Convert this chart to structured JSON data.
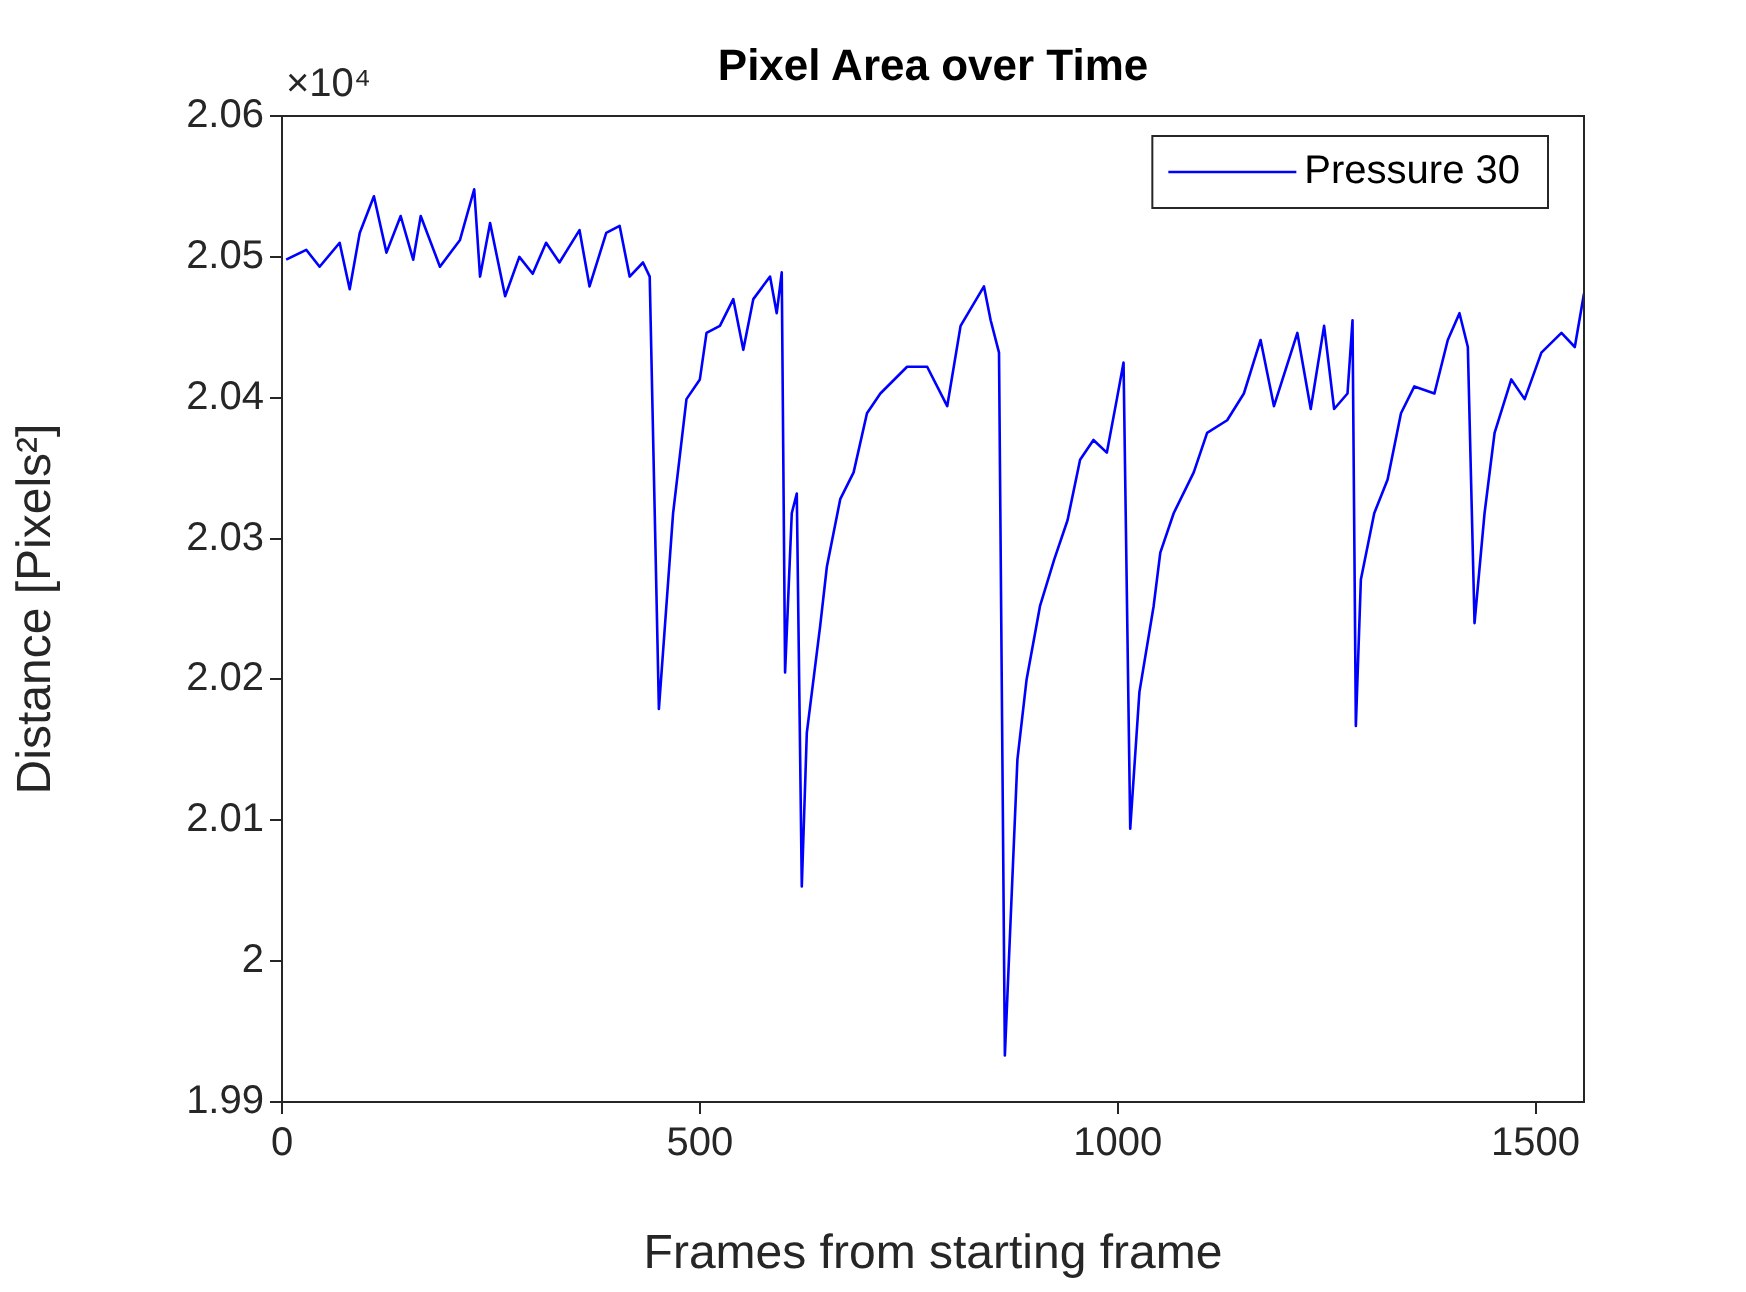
{
  "chart_data": {
    "type": "line",
    "title": "Pixel Area over Time",
    "xlabel": "Frames from starting frame",
    "ylabel": "Distance [Pixels²]",
    "annotations": [
      "×10⁴"
    ],
    "xlim": [
      0,
      1558
    ],
    "xticks": [
      0,
      500,
      1000,
      1500
    ],
    "ylim": [
      1.99,
      2.06
    ],
    "yticks": [
      1.99,
      2,
      2.01,
      2.02,
      2.03,
      2.04,
      2.05,
      2.06
    ],
    "legend": "top right",
    "marker": "none",
    "line_style": "solid",
    "series": [
      {
        "name": "Pressure 30",
        "color": "#0000ff",
        "x": [
          5,
          29,
          45,
          69,
          81,
          93,
          110,
          125,
          142,
          157,
          166,
          189,
          213,
          230,
          237,
          249,
          267,
          284,
          300,
          316,
          332,
          356,
          368,
          388,
          404,
          416,
          432,
          440,
          451,
          468,
          484,
          500,
          508,
          524,
          540,
          552,
          564,
          584,
          592,
          598,
          602,
          610,
          616,
          622,
          628,
          644,
          652,
          668,
          684,
          700,
          716,
          748,
          772,
          796,
          812,
          840,
          848,
          858,
          865,
          880,
          891,
          907,
          924,
          940,
          955,
          971,
          987,
          999,
          1007,
          1015,
          1026,
          1043,
          1051,
          1067,
          1091,
          1107,
          1131,
          1151,
          1171,
          1187,
          1215,
          1231,
          1247,
          1259,
          1275,
          1281,
          1285,
          1291,
          1307,
          1323,
          1339,
          1355,
          1379,
          1395,
          1409,
          1419,
          1427,
          1439,
          1451,
          1471,
          1487,
          1507,
          1531,
          1547,
          1558
        ],
        "values": [
          2.0498,
          2.0505,
          2.0493,
          2.051,
          2.0477,
          2.0517,
          2.0543,
          2.0503,
          2.0529,
          2.0498,
          2.0529,
          2.0493,
          2.0512,
          2.0548,
          2.0486,
          2.0524,
          2.0472,
          2.05,
          2.0488,
          2.051,
          2.0496,
          2.0519,
          2.0479,
          2.0517,
          2.0522,
          2.0486,
          2.0496,
          2.0486,
          2.0179,
          2.0318,
          2.0399,
          2.0413,
          2.0446,
          2.0451,
          2.047,
          2.0434,
          2.047,
          2.0486,
          2.046,
          2.0489,
          2.0205,
          2.0318,
          2.0332,
          2.0053,
          2.0162,
          2.0238,
          2.028,
          2.0328,
          2.0347,
          2.0389,
          2.0403,
          2.0422,
          2.0422,
          2.0394,
          2.0451,
          2.0479,
          2.0455,
          2.0432,
          1.9933,
          2.0143,
          2.02,
          2.0252,
          2.0285,
          2.0313,
          2.0356,
          2.037,
          2.0361,
          2.0399,
          2.0425,
          2.0094,
          2.0191,
          2.0252,
          2.029,
          2.0318,
          2.0347,
          2.0375,
          2.0384,
          2.0403,
          2.0441,
          2.0394,
          2.0446,
          2.0392,
          2.0451,
          2.0392,
          2.0403,
          2.0455,
          2.0167,
          2.0271,
          2.0318,
          2.0342,
          2.0389,
          2.0408,
          2.0403,
          2.0441,
          2.046,
          2.0436,
          2.024,
          2.0318,
          2.0375,
          2.0413,
          2.0399,
          2.0432,
          2.0446,
          2.0436,
          2.0474
        ]
      }
    ]
  }
}
